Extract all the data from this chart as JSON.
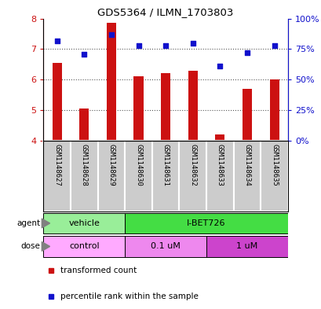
{
  "title": "GDS5364 / ILMN_1703803",
  "samples": [
    "GSM1148627",
    "GSM1148628",
    "GSM1148629",
    "GSM1148630",
    "GSM1148631",
    "GSM1148632",
    "GSM1148633",
    "GSM1148634",
    "GSM1148635"
  ],
  "red_values": [
    6.55,
    5.05,
    7.85,
    6.1,
    6.2,
    6.3,
    4.2,
    5.7,
    6.0
  ],
  "blue_values": [
    82,
    71,
    87,
    78,
    78,
    80,
    61,
    72,
    78
  ],
  "ylim_left": [
    4,
    8
  ],
  "ylim_right": [
    0,
    100
  ],
  "yticks_left": [
    4,
    5,
    6,
    7,
    8
  ],
  "yticks_right": [
    0,
    25,
    50,
    75,
    100
  ],
  "ytick_labels_right": [
    "0%",
    "25%",
    "50%",
    "75%",
    "100%"
  ],
  "red_color": "#cc1111",
  "blue_color": "#1111cc",
  "agent_labels": [
    {
      "label": "vehicle",
      "start": 0,
      "end": 3,
      "color": "#99ee99"
    },
    {
      "label": "I-BET726",
      "start": 3,
      "end": 9,
      "color": "#44dd44"
    }
  ],
  "dose_labels": [
    {
      "label": "control",
      "start": 0,
      "end": 3,
      "color": "#ffaaff"
    },
    {
      "label": "0.1 uM",
      "start": 3,
      "end": 6,
      "color": "#ee88ee"
    },
    {
      "label": "1 uM",
      "start": 6,
      "end": 9,
      "color": "#cc44cc"
    }
  ],
  "bar_width": 0.35,
  "sample_box_color": "#cccccc",
  "dotted_line_color": "#555555",
  "background_color": "#ffffff"
}
